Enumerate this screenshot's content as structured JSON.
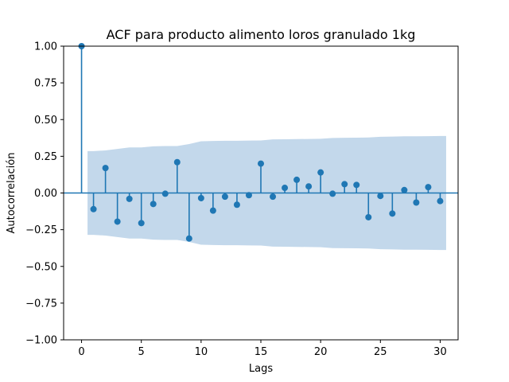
{
  "chart_data": {
    "type": "scatter",
    "title": "ACF para producto alimento loros granulado 1kg",
    "xlabel": "Lags",
    "ylabel": "Autocorrelación",
    "xlim": [
      -1.5,
      31.5
    ],
    "ylim": [
      -1.0,
      1.0
    ],
    "x_ticks": [
      0,
      5,
      10,
      15,
      20,
      25,
      30
    ],
    "x_tick_labels": [
      "0",
      "5",
      "10",
      "15",
      "20",
      "25",
      "30"
    ],
    "y_ticks": [
      -1.0,
      -0.75,
      -0.5,
      -0.25,
      0.0,
      0.25,
      0.5,
      0.75,
      1.0
    ],
    "y_tick_labels": [
      "−1.00",
      "−0.75",
      "−0.50",
      "−0.25",
      "0.00",
      "0.25",
      "0.50",
      "0.75",
      "1.00"
    ],
    "grid": false,
    "series": [
      {
        "x": [
          0,
          1,
          2,
          3,
          4,
          5,
          6,
          7,
          8,
          9,
          10,
          11,
          12,
          13,
          14,
          15,
          16,
          17,
          18,
          19,
          20,
          21,
          22,
          23,
          24,
          25,
          26,
          27,
          28,
          29,
          30
        ],
        "values": [
          1.0,
          -0.11,
          0.17,
          -0.195,
          -0.04,
          -0.205,
          -0.075,
          -0.005,
          0.21,
          -0.31,
          -0.035,
          -0.12,
          -0.025,
          -0.08,
          -0.015,
          0.2,
          -0.025,
          0.035,
          0.09,
          0.045,
          0.14,
          -0.005,
          0.06,
          0.055,
          -0.165,
          -0.02,
          -0.14,
          0.02,
          -0.065,
          0.04,
          -0.055
        ]
      }
    ],
    "confidence_band": {
      "x": [
        0.5,
        1,
        2,
        3,
        4,
        5,
        6,
        7,
        8,
        9,
        10,
        11,
        12,
        13,
        14,
        15,
        16,
        17,
        18,
        19,
        20,
        21,
        22,
        23,
        24,
        25,
        26,
        27,
        28,
        29,
        30,
        30.5
      ],
      "upper": [
        0.285,
        0.285,
        0.29,
        0.3,
        0.31,
        0.31,
        0.318,
        0.32,
        0.32,
        0.333,
        0.352,
        0.354,
        0.356,
        0.356,
        0.357,
        0.358,
        0.365,
        0.366,
        0.367,
        0.368,
        0.369,
        0.375,
        0.376,
        0.377,
        0.378,
        0.383,
        0.384,
        0.386,
        0.386,
        0.387,
        0.388,
        0.388
      ]
    },
    "colors": {
      "marker": "#1f77b4",
      "band": "#c3d8eb",
      "axis": "#000000"
    }
  }
}
